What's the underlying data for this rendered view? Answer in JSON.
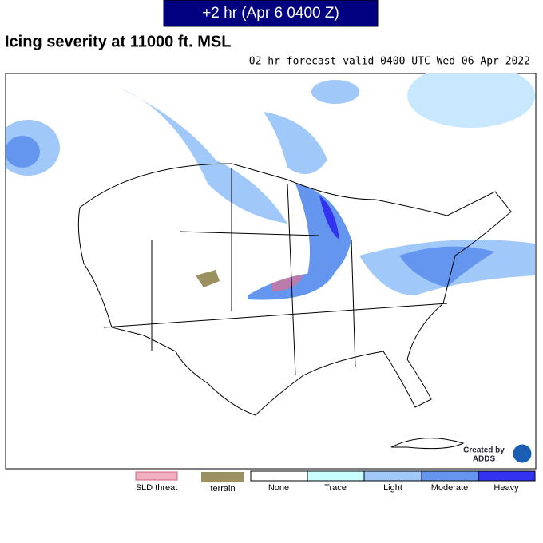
{
  "header": {
    "title": "+2 hr (Apr 6 0400 Z)"
  },
  "title": "Icing severity at 11000 ft. MSL",
  "subtitle": "02 hr forecast valid 0400 UTC Wed 06 Apr 2022",
  "legend": {
    "sld": "SLD threat",
    "terrain": "terrain",
    "scale": [
      "None",
      "Trace",
      "Light",
      "Moderate",
      "Heavy"
    ]
  },
  "credit": {
    "line1": "Created by",
    "line2": "ADDS"
  }
}
